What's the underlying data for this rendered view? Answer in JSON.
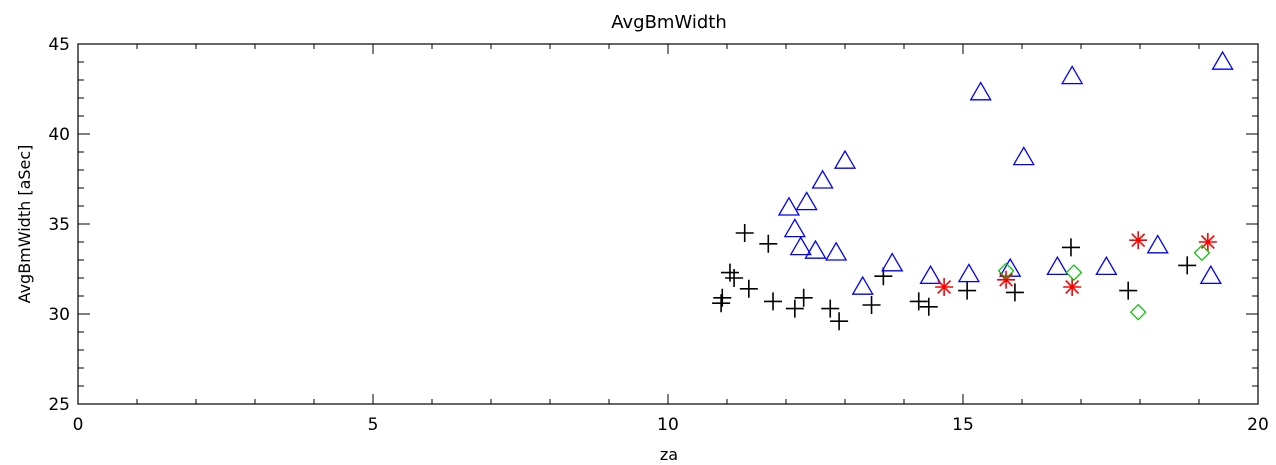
{
  "chart_data": {
    "type": "scatter",
    "title": "AvgBmWidth",
    "xlabel": "za",
    "ylabel": "AvgBmWidth [aSec]",
    "xlim": [
      0,
      20
    ],
    "ylim": [
      25,
      45
    ],
    "xticks": [
      "0",
      "5",
      "10",
      "15",
      "20"
    ],
    "yticks": [
      "25",
      "30",
      "35",
      "40",
      "45"
    ],
    "grid": false,
    "series": [
      {
        "marker": "plus",
        "color": "#000000",
        "points": [
          [
            10.9,
            30.6
          ],
          [
            10.92,
            30.9
          ],
          [
            11.05,
            32.3
          ],
          [
            11.12,
            32.0
          ],
          [
            11.3,
            34.5
          ],
          [
            11.37,
            31.4
          ],
          [
            11.7,
            33.9
          ],
          [
            11.78,
            30.7
          ],
          [
            12.15,
            30.3
          ],
          [
            12.3,
            30.9
          ],
          [
            12.75,
            30.3
          ],
          [
            12.9,
            29.6
          ],
          [
            13.45,
            30.5
          ],
          [
            13.65,
            32.1
          ],
          [
            14.25,
            30.7
          ],
          [
            14.42,
            30.4
          ],
          [
            15.07,
            31.3
          ],
          [
            15.88,
            31.2
          ],
          [
            16.83,
            33.7
          ],
          [
            17.8,
            31.3
          ],
          [
            18.8,
            32.7
          ]
        ]
      },
      {
        "marker": "triangle",
        "color": "#0000ff",
        "points": [
          [
            12.05,
            35.9
          ],
          [
            12.15,
            34.7
          ],
          [
            12.25,
            33.7
          ],
          [
            12.35,
            36.2
          ],
          [
            12.5,
            33.5
          ],
          [
            12.62,
            37.4
          ],
          [
            12.85,
            33.4
          ],
          [
            13.0,
            38.5
          ],
          [
            13.3,
            31.5
          ],
          [
            13.8,
            32.8
          ],
          [
            14.45,
            32.1
          ],
          [
            15.1,
            32.2
          ],
          [
            15.3,
            42.3
          ],
          [
            15.8,
            32.5
          ],
          [
            16.03,
            38.7
          ],
          [
            16.6,
            32.6
          ],
          [
            16.85,
            43.2
          ],
          [
            17.43,
            32.6
          ],
          [
            18.3,
            33.8
          ],
          [
            19.2,
            32.1
          ],
          [
            19.4,
            44.0
          ]
        ]
      },
      {
        "marker": "asterisk",
        "color": "#ff0000",
        "points": [
          [
            14.68,
            31.5
          ],
          [
            15.73,
            31.9
          ],
          [
            16.85,
            31.5
          ],
          [
            17.97,
            34.1
          ],
          [
            19.15,
            34.0
          ]
        ]
      },
      {
        "marker": "diamond",
        "color": "#00c000",
        "points": [
          [
            15.73,
            32.4
          ],
          [
            16.88,
            32.3
          ],
          [
            17.97,
            30.1
          ],
          [
            19.05,
            33.4
          ]
        ]
      }
    ]
  }
}
